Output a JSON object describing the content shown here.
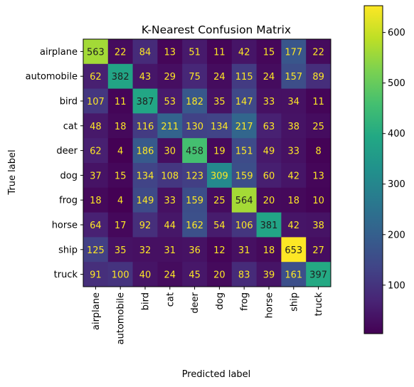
{
  "chart_data": {
    "type": "heatmap",
    "title": "K-Nearest Confusion Matrix",
    "xlabel": "Predicted label",
    "ylabel": "True label",
    "x_categories": [
      "airplane",
      "automobile",
      "bird",
      "cat",
      "deer",
      "dog",
      "frog",
      "horse",
      "ship",
      "truck"
    ],
    "y_categories": [
      "airplane",
      "automobile",
      "bird",
      "cat",
      "deer",
      "dog",
      "frog",
      "horse",
      "ship",
      "truck"
    ],
    "matrix": [
      [
        563,
        22,
        84,
        13,
        51,
        11,
        42,
        15,
        177,
        22
      ],
      [
        62,
        382,
        43,
        29,
        75,
        24,
        115,
        24,
        157,
        89
      ],
      [
        107,
        11,
        387,
        53,
        182,
        35,
        147,
        33,
        34,
        11
      ],
      [
        48,
        18,
        116,
        211,
        130,
        134,
        217,
        63,
        38,
        25
      ],
      [
        62,
        4,
        186,
        30,
        458,
        19,
        151,
        49,
        33,
        8
      ],
      [
        37,
        15,
        134,
        108,
        123,
        309,
        159,
        60,
        42,
        13
      ],
      [
        18,
        4,
        149,
        33,
        159,
        25,
        564,
        20,
        18,
        10
      ],
      [
        64,
        17,
        92,
        44,
        162,
        54,
        106,
        381,
        42,
        38
      ],
      [
        125,
        35,
        32,
        31,
        36,
        12,
        31,
        18,
        653,
        27
      ],
      [
        91,
        100,
        40,
        24,
        45,
        20,
        83,
        39,
        161,
        397
      ]
    ],
    "colormap": "viridis",
    "colorbar": {
      "range": [
        4,
        653
      ],
      "ticks": [
        100,
        200,
        300,
        400,
        500,
        600
      ]
    },
    "text_colors": {
      "light": "#fde725",
      "dark": "#1f1f1f"
    }
  }
}
